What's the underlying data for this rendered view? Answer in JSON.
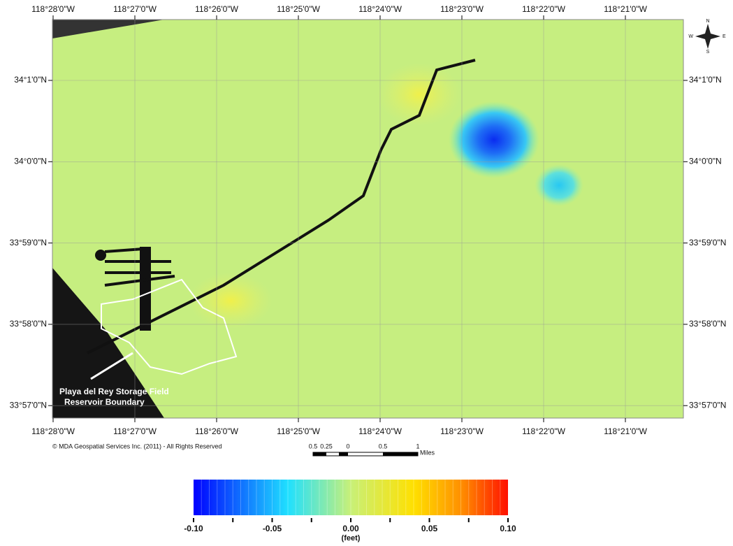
{
  "map": {
    "longitudes": [
      "118°28'0\"W",
      "118°27'0\"W",
      "118°26'0\"W",
      "118°25'0\"W",
      "118°24'0\"W",
      "118°23'0\"W",
      "118°22'0\"W",
      "118°21'0\"W"
    ],
    "latitudes": [
      "34°1'0\"N",
      "34°0'0\"N",
      "33°59'0\"N",
      "33°58'0\"N",
      "33°57'0\"N"
    ],
    "annotation": [
      "Playa del Rey Storage Field",
      "Reservoir Boundary"
    ],
    "copyright": "© MDA Geospatial Services Inc.  (2011) -  All Rights Reserved",
    "scale_bar": {
      "labels": [
        "0.5",
        "0.25",
        "0",
        "0.5",
        "1"
      ],
      "unit": "Miles"
    },
    "compass": {
      "n": "N",
      "s": "S",
      "e": "E",
      "w": "W"
    }
  },
  "colorbar": {
    "range": [
      -0.1,
      0.1
    ],
    "ticks": [
      {
        "value": -0.1,
        "label": "-0.10"
      },
      {
        "value": -0.05,
        "label": "-0.05"
      },
      {
        "value": 0,
        "label": "0.00"
      },
      {
        "value": 0.05,
        "label": "0.05"
      },
      {
        "value": 0.1,
        "label": "0.10"
      }
    ],
    "unit": "(feet)"
  }
}
